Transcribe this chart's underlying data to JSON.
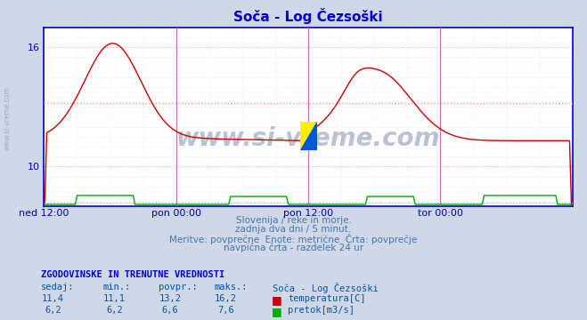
{
  "title": "Soča - Log Čezsoški",
  "bg_color": "#d0d8e8",
  "plot_bg_color": "#ffffff",
  "grid_color_major": "#ffaaaa",
  "grid_color_minor": "#ffdddd",
  "temp_color": "#cc0000",
  "flow_color": "#00aa00",
  "avg_line_color_temp": "#ff8888",
  "avg_line_color_flow": "#88cc88",
  "vline_color": "#cc66cc",
  "border_color": "#0000cc",
  "xlabel_color": "#0000aa",
  "title_color": "#0000cc",
  "text_color": "#4477aa",
  "label_color": "#0000aa",
  "ylim_min": 8.0,
  "ylim_max": 17.0,
  "yticks": [
    10,
    16
  ],
  "temp_avg": 13.2,
  "flow_avg_display": 8.2,
  "n_points": 576,
  "subtitle_lines": [
    "Slovenija / reke in morje.",
    "zadnja dva dni / 5 minut.",
    "Meritve: povprečne  Enote: metrične  Črta: povprečje",
    "navpična črta - razdelek 24 ur"
  ],
  "xtick_labels": [
    "ned 12:00",
    "pon 00:00",
    "pon 12:00",
    "tor 00:00"
  ],
  "xtick_positions": [
    0.0,
    0.25,
    0.5,
    0.75
  ],
  "stat_header": "ZGODOVINSKE IN TRENUTNE VREDNOSTI",
  "stat_cols": [
    "sedaj:",
    "min.:",
    "povpr.:",
    "maks.:"
  ],
  "stat_vals_temp": [
    "11,4",
    "11,1",
    "13,2",
    "16,2"
  ],
  "stat_vals_flow": [
    "6,2",
    "6,2",
    "6,6",
    "7,6"
  ],
  "stat_station": "Soča - Log Čezsoški",
  "legend_temp": "temperatura[C]",
  "legend_flow": "pretok[m3/s]",
  "watermark": "www.si-vreme.com",
  "watermark_color": "#1a3a7a",
  "flow_base": 8.1,
  "flow_bump": 8.55
}
